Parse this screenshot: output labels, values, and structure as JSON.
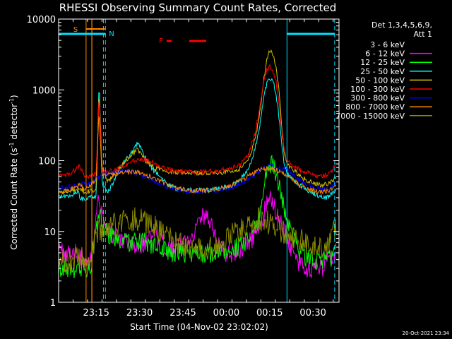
{
  "chart_data": {
    "type": "line",
    "title": "RHESSI Observing Summary Count Rates, Corrected",
    "xlabel": "Start Time (04-Nov-02 23:02:02)",
    "ylabel_prefix": "Corrected Count Rate (s",
    "ylabel_sup1": "-1",
    "ylabel_mid": " detector",
    "ylabel_sup2": "-1",
    "ylabel_suffix": ")",
    "xlim": [
      0,
      97
    ],
    "ylim": [
      1,
      10000
    ],
    "yscale": "log",
    "x_tick_labels": [
      "23:15",
      "23:30",
      "23:45",
      "00:00",
      "00:15",
      "00:30"
    ],
    "x_tick_values": [
      13,
      28,
      43,
      58,
      73,
      88
    ],
    "y_tick_labels": [
      "1",
      "10",
      "100",
      "1000",
      "10000"
    ],
    "y_tick_values": [
      1,
      10,
      100,
      1000,
      10000
    ],
    "detector_line1": "Det 1,3,4,5,6,9,",
    "detector_line2": "Att 1",
    "footer_date": "20-Oct-2021 23:34",
    "markers": {
      "s_label": "S",
      "n_label": "N",
      "f_label": "F",
      "colors": {
        "s": "#ff8800",
        "n": "#00e0ff",
        "f": "#ff0000"
      }
    },
    "series": [
      {
        "name": "3 - 6 keV",
        "color": "#000000",
        "x": [
          -1,
          7,
          9,
          11,
          14,
          15,
          17,
          20,
          24,
          27,
          30,
          32,
          35,
          38,
          40,
          42,
          44,
          47,
          50,
          53,
          55,
          57,
          60,
          63,
          65,
          67,
          69,
          71,
          72,
          73,
          74,
          76,
          77,
          78,
          79,
          80,
          81,
          83,
          86,
          90,
          93,
          96
        ],
        "y": [
          5,
          5,
          4,
          4,
          30,
          12,
          8,
          6,
          5,
          5,
          4,
          3,
          3,
          2,
          2,
          1.5,
          1.5,
          1.5,
          1.8,
          1.8,
          1.8,
          1.7,
          1.6,
          1.8,
          2.5,
          4,
          7,
          12,
          16,
          17,
          15,
          12,
          8,
          5,
          3,
          2.5,
          2,
          2,
          2,
          2,
          2,
          2
        ]
      },
      {
        "name": "6 - 12 keV",
        "color": "#ff00ff",
        "x": [
          -1,
          7,
          9,
          11,
          14,
          15,
          17,
          20,
          23,
          27,
          30,
          33,
          35,
          38,
          41,
          43,
          45,
          47,
          49,
          51,
          53,
          55,
          58,
          61,
          64,
          67,
          69,
          71,
          72,
          73,
          74,
          75,
          76,
          78,
          80,
          82,
          85,
          88,
          91,
          93,
          96
        ],
        "y": [
          5,
          5,
          4,
          4,
          35,
          18,
          10,
          8,
          7,
          6,
          7,
          9,
          7,
          6,
          6,
          7,
          8,
          10,
          15,
          18,
          12,
          7,
          5,
          5,
          6,
          8,
          12,
          18,
          24,
          30,
          26,
          20,
          16,
          10,
          6,
          4,
          3,
          3,
          3,
          4,
          5
        ]
      },
      {
        "name": "12 - 25 keV",
        "color": "#00ff00",
        "x": [
          -1,
          7,
          9,
          11,
          14,
          15,
          17,
          20,
          23,
          27,
          30,
          33,
          35,
          38,
          41,
          44,
          47,
          50,
          53,
          56,
          59,
          62,
          65,
          67,
          69,
          70,
          71,
          72,
          73,
          74,
          75,
          76,
          77,
          79,
          81,
          84,
          87,
          90,
          93,
          96
        ],
        "y": [
          3,
          3,
          3,
          3,
          20,
          12,
          9,
          8,
          7,
          7,
          7,
          6,
          6,
          5,
          5,
          5,
          5,
          5,
          5,
          5,
          5.5,
          6,
          7,
          9,
          14,
          22,
          45,
          75,
          90,
          85,
          70,
          50,
          30,
          15,
          8,
          5,
          4,
          4,
          4,
          5
        ]
      },
      {
        "name": "25 - 50 keV",
        "color": "#00ffff",
        "x": [
          -1,
          3,
          6,
          7,
          7.3,
          9,
          11,
          13,
          14,
          15,
          17,
          20,
          23,
          26,
          27,
          28,
          30,
          32,
          35,
          38,
          41,
          45,
          50,
          55,
          60,
          63,
          66,
          68,
          70,
          71,
          72,
          73,
          74,
          75,
          76,
          77,
          78,
          79,
          80,
          82,
          85,
          88,
          90,
          93,
          95,
          96
        ],
        "y": [
          30,
          32,
          35,
          40,
          30,
          28,
          30,
          32,
          1400,
          50,
          35,
          60,
          100,
          140,
          170,
          160,
          110,
          80,
          60,
          45,
          40,
          38,
          38,
          40,
          45,
          55,
          80,
          150,
          400,
          800,
          1200,
          1450,
          1350,
          1000,
          500,
          200,
          90,
          70,
          60,
          50,
          40,
          35,
          32,
          30,
          35,
          40
        ]
      },
      {
        "name": "50 - 100 keV",
        "color": "#d4c000",
        "x": [
          -1,
          7,
          9,
          11,
          13,
          14,
          15,
          17,
          20,
          23,
          26,
          27,
          28,
          30,
          33,
          37,
          41,
          45,
          50,
          55,
          60,
          63,
          66,
          68,
          70,
          71,
          72,
          73,
          74,
          75,
          76,
          77,
          78,
          79,
          80,
          82,
          85,
          88,
          91,
          94,
          96
        ],
        "y": [
          35,
          40,
          36,
          37,
          40,
          1100,
          80,
          50,
          70,
          100,
          130,
          150,
          130,
          100,
          80,
          70,
          68,
          67,
          67,
          68,
          70,
          78,
          110,
          200,
          600,
          1400,
          2800,
          3600,
          3300,
          2400,
          1200,
          400,
          130,
          90,
          80,
          70,
          55,
          48,
          45,
          48,
          60
        ]
      },
      {
        "name": "100 - 300 keV",
        "color": "#ff0000",
        "x": [
          -1,
          3,
          6,
          7,
          9,
          11,
          13,
          14,
          15,
          17,
          20,
          23,
          26,
          29,
          32,
          35,
          38,
          42,
          46,
          50,
          55,
          60,
          63,
          66,
          68,
          70,
          71,
          72,
          73,
          74,
          75,
          76,
          77,
          78,
          79,
          80,
          82,
          85,
          88,
          91,
          94,
          96
        ],
        "y": [
          60,
          63,
          75,
          85,
          60,
          60,
          65,
          800,
          70,
          70,
          75,
          85,
          100,
          105,
          95,
          85,
          75,
          70,
          70,
          70,
          72,
          78,
          90,
          130,
          250,
          700,
          1400,
          1900,
          2100,
          1900,
          1500,
          800,
          300,
          140,
          100,
          90,
          80,
          70,
          62,
          60,
          65,
          90
        ]
      },
      {
        "name": "300 - 800 keV",
        "color": "#0000ff",
        "x": [
          -1,
          7,
          9,
          11,
          13,
          15,
          17,
          20,
          23,
          26,
          29,
          32,
          35,
          38,
          42,
          46,
          50,
          55,
          60,
          64,
          68,
          70,
          72,
          73,
          74,
          76,
          78,
          80,
          82,
          85,
          88,
          91,
          94,
          96
        ],
        "y": [
          40,
          45,
          48,
          48,
          55,
          62,
          65,
          70,
          72,
          68,
          62,
          55,
          48,
          42,
          38,
          37,
          37,
          38,
          42,
          50,
          65,
          75,
          82,
          85,
          84,
          80,
          75,
          72,
          60,
          48,
          42,
          40,
          42,
          50
        ]
      },
      {
        "name": "800 - 7000 keV",
        "color": "#ff8800",
        "x": [
          -1,
          3,
          6,
          7,
          9,
          11,
          13,
          14,
          15,
          17,
          20,
          23,
          26,
          29,
          32,
          35,
          38,
          42,
          46,
          50,
          55,
          60,
          64,
          67,
          70,
          72,
          74,
          76,
          78,
          80,
          82,
          85,
          88,
          91,
          94,
          96
        ],
        "y": [
          35,
          38,
          42,
          45,
          40,
          45,
          55,
          500,
          60,
          62,
          65,
          68,
          70,
          65,
          60,
          52,
          45,
          40,
          38,
          38,
          40,
          45,
          55,
          65,
          75,
          78,
          76,
          72,
          65,
          58,
          50,
          42,
          38,
          36,
          38,
          45
        ]
      },
      {
        "name": "7000 - 15000 keV",
        "color": "#8b8b00",
        "x": [
          -1,
          7,
          9,
          11,
          13,
          14,
          15,
          17,
          20,
          23,
          26,
          29,
          32,
          35,
          38,
          41,
          44,
          47,
          50,
          53,
          56,
          59,
          62,
          65,
          68,
          70,
          72,
          73,
          74,
          76,
          78,
          80,
          82,
          85,
          88,
          91,
          94,
          96
        ],
        "y": [
          4,
          4,
          4,
          4,
          9,
          12,
          10,
          11,
          13,
          14,
          15,
          14,
          12,
          10,
          8,
          7,
          6,
          5.5,
          5.5,
          6,
          7,
          8,
          10,
          12,
          14,
          15,
          14,
          13,
          12,
          11,
          10,
          9,
          8,
          7,
          6,
          6,
          7,
          13
        ]
      }
    ]
  }
}
